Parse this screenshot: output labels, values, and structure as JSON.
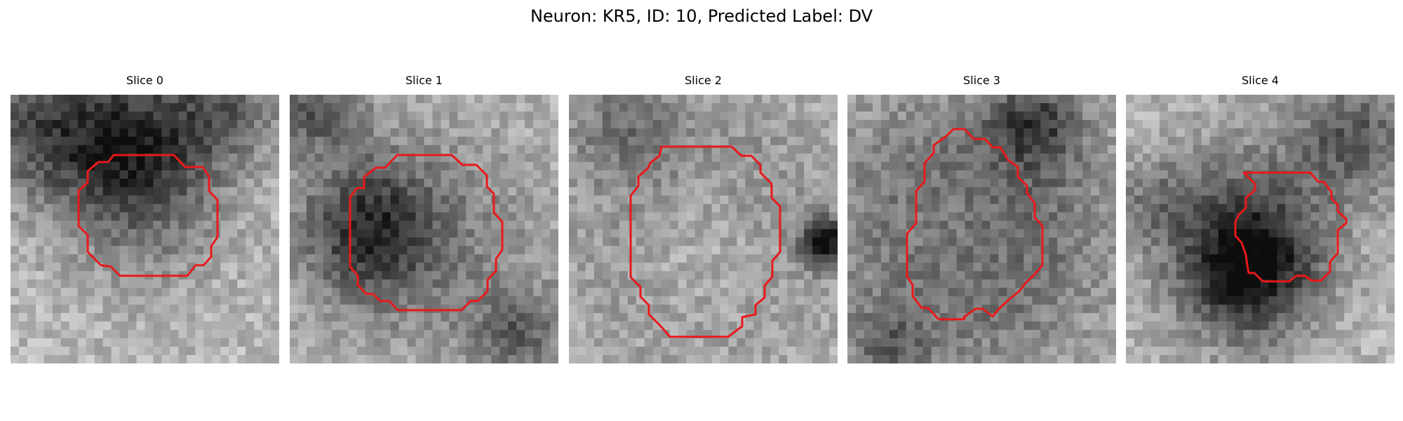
{
  "figure": {
    "title": "Neuron: KR5, ID: 10, Predicted Label: DV"
  },
  "panels": [
    {
      "title": "Slice 0",
      "contour_color": "#e8191c",
      "colormap": "grayscale"
    },
    {
      "title": "Slice 1",
      "contour_color": "#e8191c",
      "colormap": "grayscale"
    },
    {
      "title": "Slice 2",
      "contour_color": "#e8191c",
      "colormap": "grayscale"
    },
    {
      "title": "Slice 3",
      "contour_color": "#e8191c",
      "colormap": "grayscale"
    },
    {
      "title": "Slice 4",
      "contour_color": "#e8191c",
      "colormap": "grayscale"
    }
  ]
}
